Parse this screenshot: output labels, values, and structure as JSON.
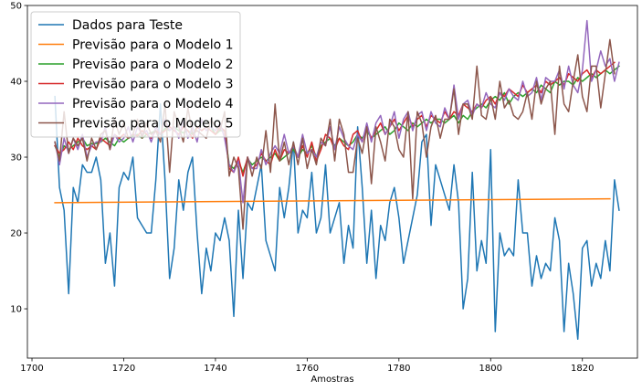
{
  "chart_data": {
    "type": "line",
    "title": "",
    "xlabel": "Amostras",
    "ylabel": "",
    "xlim": [
      1699,
      1832
    ],
    "ylim": [
      3.5,
      50
    ],
    "xticks": [
      1700,
      1720,
      1740,
      1760,
      1780,
      1800,
      1820
    ],
    "yticks": [
      10,
      20,
      30,
      40,
      50
    ],
    "grid": false,
    "legend_position": "top-left",
    "series": [
      {
        "name": "Dados para Teste",
        "color": "#1f77b4",
        "x_start": 1705,
        "values": [
          38,
          26,
          23,
          12,
          26,
          24,
          29,
          28,
          28,
          30,
          27,
          16,
          20,
          13,
          26,
          28,
          27,
          30,
          22,
          21,
          20,
          20,
          27,
          37,
          27,
          14,
          18,
          27,
          23,
          28,
          30,
          20,
          12,
          18,
          15,
          20,
          19,
          22,
          19,
          9,
          23,
          14,
          24,
          23,
          26,
          29,
          19,
          17,
          15,
          26,
          22,
          26,
          32,
          20,
          23,
          22,
          28,
          20,
          22,
          29,
          20,
          22,
          24,
          16,
          21,
          18,
          34,
          26,
          16,
          23,
          14,
          21,
          19,
          24,
          26,
          22,
          16,
          19,
          22,
          25,
          32,
          33,
          21,
          29,
          27,
          25,
          23,
          29,
          24,
          10,
          14,
          28,
          15,
          19,
          16,
          31,
          7,
          20,
          17,
          18,
          17,
          27,
          20,
          20,
          13,
          17,
          14,
          16,
          15,
          22,
          19,
          7,
          16,
          12,
          6,
          18,
          19,
          13,
          16,
          14,
          19,
          15,
          27,
          23
        ]
      },
      {
        "name": "Previsão para o Modelo 1",
        "color": "#ff7f0e",
        "x": [
          1705,
          1826
        ],
        "values": [
          24.0,
          24.5
        ]
      },
      {
        "name": "Previsão para o Modelo 2",
        "color": "#2ca02c",
        "x_start": 1705,
        "values": [
          31.5,
          30.0,
          31.5,
          31.0,
          31.5,
          32.0,
          32.5,
          31.5,
          31.8,
          31.8,
          32.0,
          32.5,
          32.0,
          31.5,
          32.5,
          32.0,
          32.5,
          32.8,
          33.0,
          32.5,
          33.0,
          33.2,
          33.5,
          33.0,
          33.8,
          33.5,
          34.0,
          33.5,
          33.2,
          33.5,
          33.0,
          34.0,
          33.5,
          34.0,
          34.0,
          33.0,
          33.5,
          33.5,
          29.0,
          28.5,
          29.5,
          28.0,
          29.8,
          29.0,
          29.5,
          30.0,
          29.5,
          30.0,
          30.5,
          29.5,
          30.0,
          30.5,
          31.0,
          30.0,
          31.0,
          30.5,
          31.5,
          30.0,
          31.5,
          32.0,
          32.5,
          31.5,
          32.5,
          32.0,
          31.5,
          32.0,
          33.0,
          32.5,
          33.5,
          32.5,
          33.0,
          33.5,
          34.0,
          33.0,
          33.5,
          34.5,
          34.0,
          33.5,
          34.5,
          34.0,
          34.5,
          35.0,
          34.5,
          35.0,
          35.0,
          34.5,
          35.0,
          35.5,
          34.5,
          35.5,
          35.0,
          36.0,
          36.5,
          37.0,
          36.5,
          37.5,
          38.0,
          37.5,
          38.5,
          37.0,
          38.0,
          38.5,
          38.0,
          38.5,
          39.0,
          38.5,
          39.5,
          39.0,
          38.5,
          40.0,
          39.5,
          40.0,
          40.0,
          39.5,
          40.5,
          40.0,
          40.5,
          41.0,
          40.5,
          41.0,
          41.5,
          41.0,
          41.5,
          42.0
        ]
      },
      {
        "name": "Previsão para o Modelo 3",
        "color": "#d62728",
        "x_start": 1705,
        "values": [
          31.5,
          30.5,
          31.0,
          32.0,
          31.0,
          32.5,
          31.5,
          31.0,
          31.5,
          31.0,
          32.5,
          32.0,
          31.5,
          33.0,
          32.5,
          33.0,
          32.5,
          33.0,
          32.8,
          33.5,
          33.0,
          32.5,
          33.5,
          33.0,
          33.5,
          34.0,
          33.5,
          33.0,
          34.0,
          33.5,
          32.5,
          34.0,
          33.5,
          34.0,
          33.5,
          33.0,
          34.0,
          33.5,
          28.5,
          28.0,
          30.0,
          27.5,
          30.0,
          28.5,
          29.0,
          30.5,
          29.5,
          29.0,
          31.0,
          29.5,
          31.0,
          30.5,
          31.5,
          30.0,
          31.5,
          30.0,
          32.0,
          29.5,
          31.0,
          33.0,
          32.5,
          31.0,
          32.5,
          31.5,
          31.0,
          33.0,
          33.5,
          32.0,
          34.0,
          32.5,
          33.5,
          34.5,
          33.0,
          34.0,
          35.0,
          33.5,
          34.5,
          35.5,
          34.0,
          35.0,
          35.5,
          34.0,
          35.5,
          35.0,
          34.5,
          36.0,
          35.0,
          36.0,
          35.5,
          37.0,
          36.5,
          36.0,
          37.0,
          36.5,
          37.5,
          38.0,
          37.0,
          38.5,
          38.0,
          39.0,
          38.5,
          38.0,
          39.5,
          38.5,
          39.0,
          39.5,
          38.5,
          40.0,
          39.5,
          40.0,
          40.5,
          39.5,
          41.0,
          40.5,
          40.0,
          41.0,
          41.5,
          40.5,
          41.5,
          41.0,
          41.5,
          42.0,
          42.5
        ]
      },
      {
        "name": "Previsão para o Modelo 4",
        "color": "#9467bd",
        "x_start": 1705,
        "values": [
          32.0,
          29.0,
          32.5,
          30.5,
          32.5,
          31.0,
          33.0,
          30.0,
          31.5,
          32.0,
          32.0,
          34.0,
          31.0,
          33.0,
          32.0,
          32.5,
          34.0,
          32.0,
          34.0,
          33.0,
          33.5,
          32.0,
          34.0,
          33.0,
          35.0,
          33.5,
          34.0,
          32.5,
          35.0,
          32.5,
          34.0,
          32.0,
          35.0,
          33.5,
          34.0,
          33.5,
          34.5,
          32.5,
          29.0,
          28.0,
          29.5,
          24.0,
          30.0,
          28.5,
          28.5,
          31.0,
          29.0,
          30.5,
          31.5,
          30.5,
          33.0,
          30.5,
          31.5,
          30.0,
          33.0,
          30.5,
          31.0,
          30.0,
          32.0,
          31.5,
          34.0,
          31.0,
          34.0,
          32.5,
          31.5,
          31.0,
          33.0,
          32.0,
          34.5,
          32.0,
          34.5,
          35.5,
          33.0,
          34.0,
          36.0,
          32.5,
          35.0,
          36.0,
          33.5,
          35.5,
          36.0,
          33.5,
          36.0,
          34.5,
          34.0,
          36.5,
          35.0,
          39.5,
          35.0,
          37.0,
          37.5,
          35.5,
          37.0,
          36.5,
          38.5,
          37.0,
          36.5,
          38.5,
          37.5,
          39.0,
          38.0,
          37.5,
          40.0,
          38.0,
          38.5,
          40.5,
          37.5,
          40.5,
          40.0,
          40.0,
          41.5,
          39.0,
          42.0,
          39.5,
          38.5,
          41.5,
          48.0,
          40.0,
          41.5,
          44.0,
          42.0,
          43.0,
          40.0,
          42.5
        ]
      },
      {
        "name": "Previsão para o Modelo 5",
        "color": "#8c564b",
        "x_start": 1705,
        "values": [
          32.0,
          29.5,
          36.0,
          30.5,
          32.5,
          31.5,
          32.5,
          29.5,
          32.5,
          31.0,
          33.0,
          33.5,
          31.0,
          35.0,
          33.0,
          34.5,
          32.5,
          33.0,
          35.0,
          32.5,
          34.5,
          33.0,
          33.5,
          32.0,
          37.0,
          28.0,
          36.0,
          34.0,
          32.0,
          36.5,
          33.0,
          33.5,
          33.0,
          32.5,
          35.0,
          34.0,
          33.5,
          36.0,
          27.5,
          30.0,
          28.5,
          20.5,
          30.0,
          27.5,
          30.0,
          28.5,
          33.5,
          28.0,
          37.0,
          29.5,
          32.0,
          29.0,
          32.0,
          29.0,
          32.5,
          28.5,
          31.0,
          29.0,
          32.5,
          31.5,
          35.0,
          29.5,
          35.0,
          33.0,
          28.0,
          28.0,
          32.5,
          30.5,
          34.0,
          26.5,
          34.0,
          32.0,
          29.5,
          35.0,
          34.0,
          31.0,
          30.0,
          36.0,
          24.5,
          36.0,
          34.5,
          30.0,
          34.0,
          35.5,
          32.5,
          35.0,
          35.0,
          39.0,
          33.0,
          37.0,
          37.0,
          35.0,
          42.0,
          35.5,
          35.0,
          38.0,
          35.0,
          40.0,
          36.5,
          37.5,
          35.5,
          35.0,
          36.0,
          38.5,
          35.0,
          40.0,
          37.0,
          39.0,
          40.0,
          33.0,
          42.0,
          37.0,
          36.0,
          40.0,
          43.5,
          38.0,
          36.0,
          42.0,
          42.0,
          36.5,
          41.0,
          45.5,
          41.0
        ]
      }
    ]
  }
}
